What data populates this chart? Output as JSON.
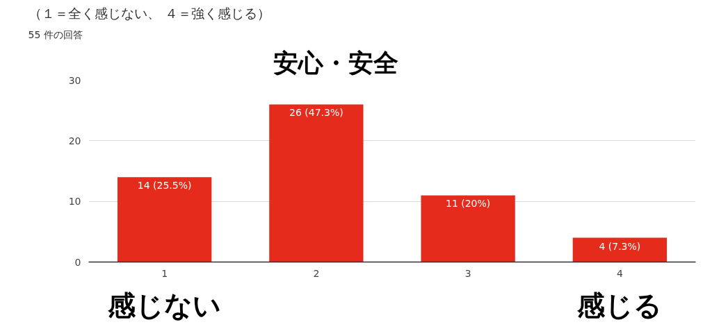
{
  "chart_data": {
    "type": "bar",
    "title": "安心・安全",
    "subtitle": "（１＝全く感じない、 ４＝強く感じる）",
    "categories": [
      "1",
      "2",
      "3",
      "4"
    ],
    "values": [
      14,
      26,
      11,
      4
    ],
    "value_labels": [
      "14 (25.5%)",
      "26 (47.3%)",
      "11 (20%)",
      "4 (7.3%)"
    ],
    "color": "#e52b1b",
    "ylim": [
      0,
      30
    ],
    "yticks": [
      0,
      10,
      20,
      30
    ],
    "grid": "y",
    "annotations": [
      "55 件の回答",
      "感じない",
      "感じる"
    ]
  }
}
